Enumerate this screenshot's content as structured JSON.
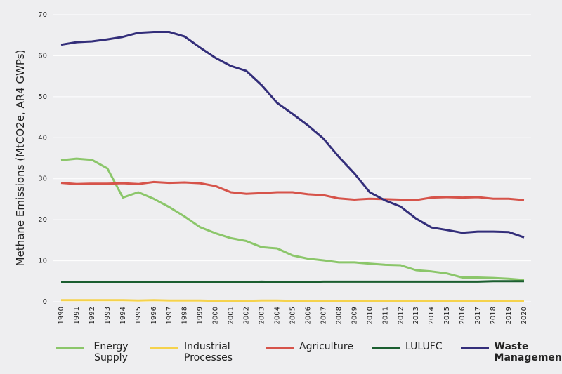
{
  "chart_data": {
    "type": "line",
    "y_label": "Methane Emissions (MtCO2e, AR4 GWPs)",
    "categories": [
      "1990",
      "1991",
      "1992",
      "1993",
      "1994",
      "1995",
      "1996",
      "1997",
      "1998",
      "1999",
      "2000",
      "2001",
      "2002",
      "2003",
      "2004",
      "2005",
      "2006",
      "2007",
      "2008",
      "2009",
      "2010",
      "2011",
      "2012",
      "2013",
      "2014",
      "2015",
      "2016",
      "2017",
      "2018",
      "2019",
      "2020"
    ],
    "series": [
      {
        "name": "Energy Supply",
        "color": "#8bc66a",
        "values": [
          34.5,
          34.9,
          34.6,
          32.5,
          25.4,
          26.7,
          25.1,
          23.1,
          20.8,
          18.2,
          16.7,
          15.5,
          14.8,
          13.3,
          13.0,
          11.3,
          10.5,
          10.1,
          9.6,
          9.6,
          9.3,
          9.0,
          8.9,
          7.7,
          7.4,
          6.9,
          5.9,
          5.9,
          5.8,
          5.6,
          5.3
        ]
      },
      {
        "name": "Industrial Processes",
        "color": "#f5d24c",
        "values": [
          0.4,
          0.4,
          0.4,
          0.4,
          0.4,
          0.3,
          0.4,
          0.3,
          0.3,
          0.3,
          0.2,
          0.2,
          0.2,
          0.3,
          0.3,
          0.2,
          0.2,
          0.2,
          0.2,
          0.2,
          0.2,
          0.2,
          0.2,
          0.2,
          0.2,
          0.2,
          0.2,
          0.2,
          0.2,
          0.2,
          0.2
        ]
      },
      {
        "name": "Agriculture",
        "color": "#d6534a",
        "values": [
          29.0,
          28.7,
          28.8,
          28.8,
          28.9,
          28.7,
          29.2,
          29.0,
          29.1,
          28.9,
          28.2,
          26.7,
          26.3,
          26.5,
          26.7,
          26.7,
          26.2,
          26.0,
          25.2,
          24.9,
          25.1,
          25.0,
          24.9,
          24.8,
          25.4,
          25.5,
          25.4,
          25.5,
          25.1,
          25.1,
          24.8
        ]
      },
      {
        "name": "LULUFC",
        "color": "#1b5e30",
        "values": [
          4.8,
          4.8,
          4.8,
          4.8,
          4.8,
          4.8,
          4.8,
          4.8,
          4.8,
          4.8,
          4.8,
          4.8,
          4.8,
          4.9,
          4.8,
          4.8,
          4.8,
          4.9,
          4.9,
          4.9,
          4.9,
          4.9,
          4.9,
          4.9,
          4.9,
          4.9,
          4.9,
          4.9,
          5.0,
          5.0,
          5.0
        ]
      },
      {
        "name": "Waste Management",
        "color": "#332e7a",
        "values": [
          62.7,
          63.3,
          63.5,
          64.0,
          64.6,
          65.6,
          65.8,
          65.8,
          64.7,
          62.0,
          59.5,
          57.5,
          56.3,
          52.8,
          48.5,
          45.8,
          43.0,
          39.8,
          35.3,
          31.3,
          26.7,
          24.7,
          23.2,
          20.3,
          18.1,
          17.5,
          16.8,
          17.1,
          17.1,
          17.0,
          15.7
        ]
      }
    ],
    "ylim": [
      0,
      70
    ],
    "yticks": [
      0,
      10,
      20,
      30,
      40,
      50,
      60,
      70
    ],
    "grid": true,
    "legend": "bottom"
  }
}
